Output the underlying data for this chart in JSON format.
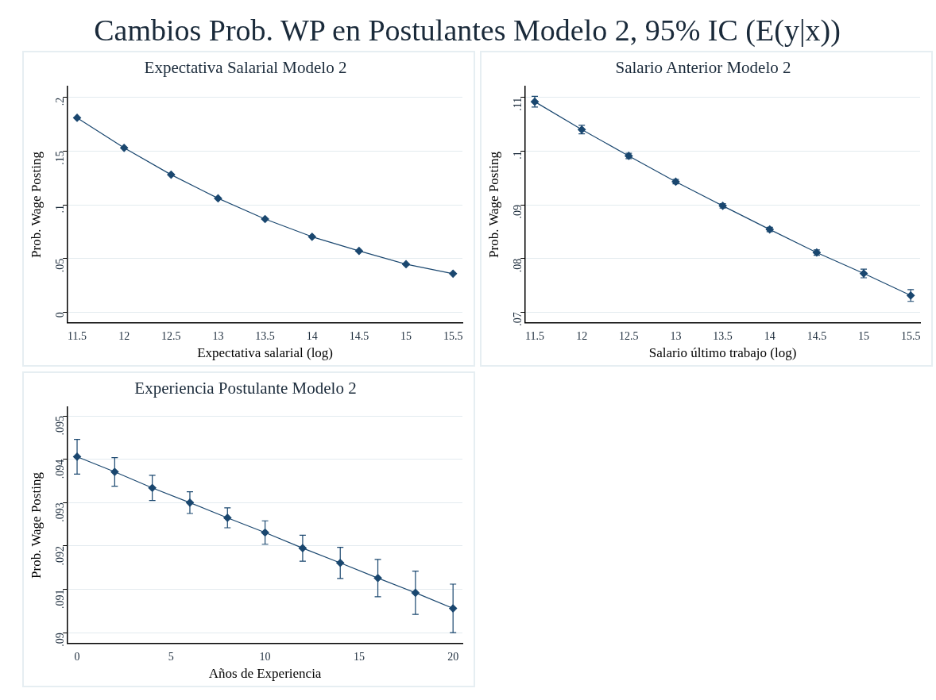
{
  "chart_data": [
    {
      "type": "line",
      "annotations": [
        "Cambios Prob. WP en Postulantes Modelo 2, 95% IC (E(y|x))"
      ],
      "title": "Expectativa Salarial Modelo 2",
      "xlabel": "Expectativa salarial (log)",
      "ylabel": "Prob. Wage Posting",
      "x": [
        11.5,
        12,
        12.5,
        13,
        13.5,
        14,
        14.5,
        15,
        15.5
      ],
      "series": [
        {
          "color": "#1a476f",
          "values": [
            0.181,
            0.153,
            0.128,
            0.106,
            0.0867,
            0.0702,
            0.057,
            0.0446,
            0.0358
          ]
        }
      ],
      "xlim": [
        11.4,
        15.6
      ],
      "xticks": [
        11.5,
        12,
        12.5,
        13,
        13.5,
        14,
        14.5,
        15,
        15.5
      ],
      "ylim": [
        -0.01,
        0.21
      ],
      "yticks": [
        {
          "value": 0,
          "label": "0"
        },
        {
          "value": 0.05,
          "label": ".05"
        },
        {
          "value": 0.1,
          "label": ".1"
        },
        {
          "value": 0.15,
          "label": ".15"
        },
        {
          "value": 0.2,
          "label": ".2"
        }
      ],
      "grid": "y",
      "legend": false,
      "marker": "diamond",
      "line_style": "solid"
    },
    {
      "type": "line",
      "title": "Salario Anterior Modelo 2",
      "xlabel": "Salario último trabajo (log)",
      "ylabel": "Prob. Wage Posting",
      "x": [
        11.5,
        12,
        12.5,
        13,
        13.5,
        14,
        14.5,
        15,
        15.5
      ],
      "series": [
        {
          "color": "#1a476f",
          "values": [
            0.1092,
            0.104,
            0.0991,
            0.0943,
            0.0898,
            0.0854,
            0.0811,
            0.0772,
            0.0731
          ],
          "errors": [
            0.001,
            0.0008,
            0.0005,
            0.0004,
            0.0004,
            0.0004,
            0.0005,
            0.0008,
            0.0011
          ]
        }
      ],
      "xlim": [
        11.4,
        15.6
      ],
      "xticks": [
        11.5,
        12,
        12.5,
        13,
        13.5,
        14,
        14.5,
        15,
        15.5
      ],
      "ylim": [
        0.068,
        0.112
      ],
      "yticks": [
        {
          "value": 0.07,
          "label": ".07"
        },
        {
          "value": 0.08,
          "label": ".08"
        },
        {
          "value": 0.09,
          "label": ".09"
        },
        {
          "value": 0.1,
          "label": ".1"
        },
        {
          "value": 0.11,
          "label": ".11"
        }
      ],
      "grid": "y",
      "legend": false,
      "marker": "diamond",
      "line_style": "solid"
    },
    {
      "type": "line",
      "title": "Experiencia Postulante Modelo 2",
      "xlabel": "Años de Experiencia",
      "ylabel": "Prob. Wage Posting",
      "x": [
        0,
        2,
        4,
        6,
        8,
        10,
        12,
        14,
        16,
        18,
        20
      ],
      "series": [
        {
          "color": "#1a476f",
          "values": [
            0.09406,
            0.09371,
            0.09334,
            0.093,
            0.09265,
            0.09231,
            0.09195,
            0.09161,
            0.09126,
            0.09092,
            0.09056
          ],
          "errors": [
            0.0004,
            0.00033,
            0.00029,
            0.00025,
            0.00023,
            0.00027,
            0.0003,
            0.00036,
            0.00043,
            0.0005,
            0.00056
          ]
        }
      ],
      "xlim": [
        -0.5,
        20.5
      ],
      "xticks": [
        0,
        5,
        10,
        15,
        20
      ],
      "ylim": [
        0.08975,
        0.0952
      ],
      "yticks": [
        {
          "value": 0.09,
          "label": ".09"
        },
        {
          "value": 0.091,
          "label": ".091"
        },
        {
          "value": 0.092,
          "label": ".092"
        },
        {
          "value": 0.093,
          "label": ".093"
        },
        {
          "value": 0.094,
          "label": ".094"
        },
        {
          "value": 0.095,
          "label": ".095"
        }
      ],
      "grid": "y",
      "legend": false,
      "marker": "diamond",
      "line_style": "solid"
    }
  ]
}
